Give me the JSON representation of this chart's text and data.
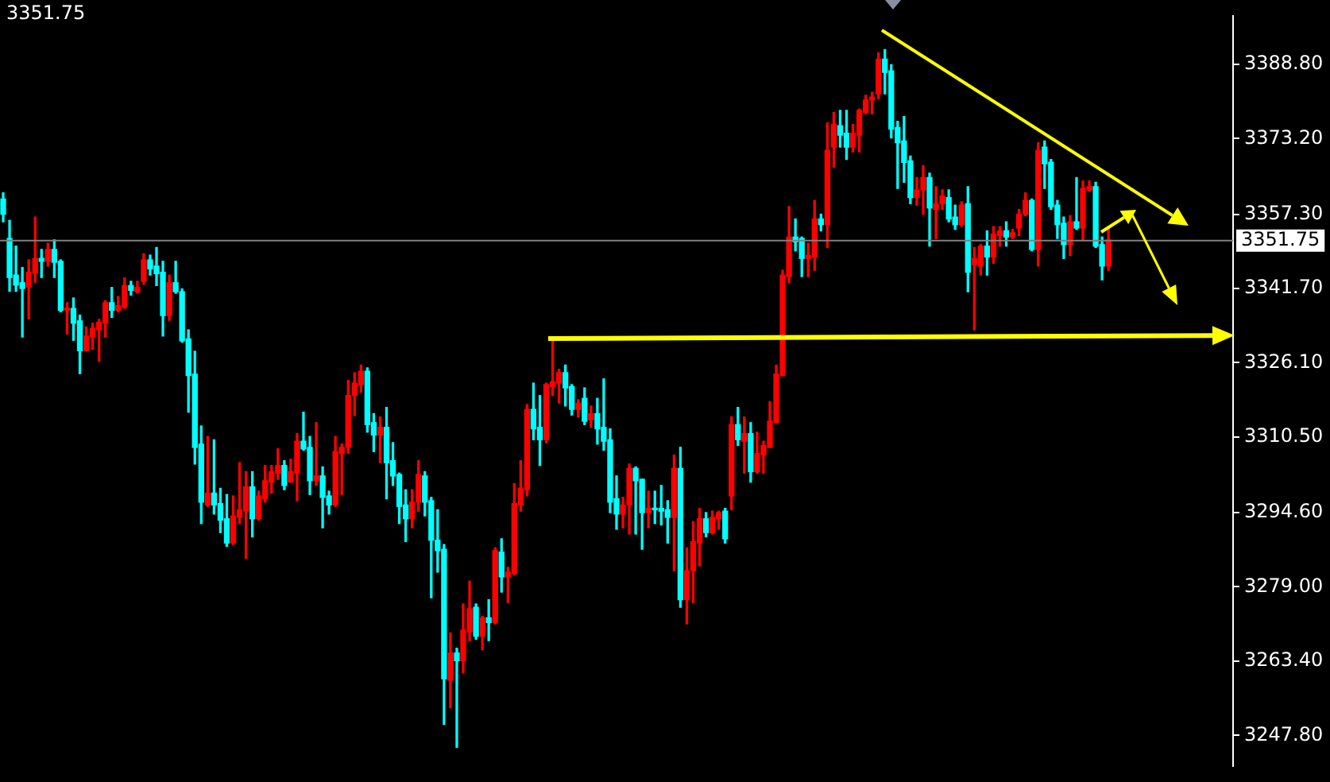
{
  "chart_data": {
    "type": "candlestick",
    "title": "3351.75",
    "categories": [
      null,
      null,
      null,
      null,
      null,
      null,
      null,
      null,
      null,
      null,
      null,
      null,
      null,
      null,
      null,
      null,
      null,
      null,
      null,
      null,
      null,
      null,
      null,
      null,
      null,
      null,
      null,
      null,
      null,
      null,
      null,
      null,
      null,
      null,
      null,
      null,
      null,
      null,
      null,
      null,
      null,
      null,
      null,
      null,
      null,
      null,
      null,
      null,
      null,
      null,
      null,
      null,
      null,
      null,
      null,
      null,
      null,
      null,
      null,
      null,
      null,
      null,
      null,
      null,
      null,
      null,
      null,
      null,
      null,
      null,
      null,
      null,
      null,
      null,
      null,
      null,
      null,
      null,
      null,
      null,
      null,
      null,
      null,
      null,
      null,
      null,
      null,
      null,
      null,
      null,
      null,
      null,
      null,
      null,
      null,
      null,
      null,
      null,
      null,
      null,
      null,
      null,
      null,
      null,
      null,
      null,
      null,
      null,
      null,
      null,
      null,
      null,
      null,
      null,
      null,
      null,
      null,
      null,
      null,
      null,
      null,
      null,
      null,
      null,
      null,
      null,
      null,
      null,
      null,
      null,
      null,
      null,
      null,
      null,
      null,
      null,
      null,
      null,
      null,
      null,
      null,
      null,
      null,
      null,
      null,
      null,
      null,
      null,
      null,
      null,
      null,
      null,
      null,
      null,
      null,
      null,
      null,
      null,
      null,
      null,
      null,
      null,
      null,
      null,
      null,
      null,
      null,
      null,
      null,
      null,
      null,
      null,
      null,
      null,
      null,
      null,
      null,
      null,
      null,
      null,
      null,
      null,
      null,
      null,
      null,
      null,
      null,
      null,
      null,
      null,
      null,
      null,
      null
    ],
    "ohlc": [
      [
        3360.5,
        3361.8,
        3355.7,
        3357.3
      ],
      [
        3352.2,
        3356.0,
        3341.1,
        3344.0
      ],
      [
        3344.5,
        3350.6,
        3341.1,
        3342.4
      ],
      [
        3342.9,
        3346.1,
        3331.5,
        3341.7
      ],
      [
        3342.0,
        3347.7,
        3335.3,
        3345.1
      ],
      [
        3344.9,
        3356.7,
        3343.0,
        3348.0
      ],
      [
        3348.0,
        3349.9,
        3344.0,
        3347.4
      ],
      [
        3347.4,
        3351.2,
        3346.4,
        3349.9
      ],
      [
        3349.9,
        3351.9,
        3344.0,
        3347.2
      ],
      [
        3347.4,
        3347.7,
        3336.8,
        3337.1
      ],
      [
        3337.1,
        3338.7,
        3332.1,
        3337.6
      ],
      [
        3337.5,
        3339.7,
        3330.8,
        3334.4
      ],
      [
        3334.9,
        3336.1,
        3323.8,
        3328.6
      ],
      [
        3328.6,
        3333.6,
        3328.6,
        3331.7
      ],
      [
        3331.5,
        3334.4,
        3328.9,
        3333.3
      ],
      [
        3333.0,
        3335.2,
        3326.4,
        3334.6
      ],
      [
        3334.4,
        3339.1,
        3331.5,
        3338.7
      ],
      [
        3338.7,
        3341.9,
        3335.6,
        3337.1
      ],
      [
        3337.1,
        3340.0,
        3336.8,
        3338.1
      ],
      [
        3337.8,
        3343.9,
        3337.5,
        3342.3
      ],
      [
        3342.3,
        3343.2,
        3340.3,
        3341.3
      ],
      [
        3341.0,
        3343.2,
        3340.7,
        3341.9
      ],
      [
        3343.2,
        3349.0,
        3342.6,
        3347.7
      ],
      [
        3347.7,
        3348.7,
        3344.5,
        3345.8
      ],
      [
        3346.4,
        3350.3,
        3342.3,
        3344.8
      ],
      [
        3345.1,
        3347.4,
        3331.7,
        3336.0
      ],
      [
        3336.0,
        3344.5,
        3335.0,
        3342.9
      ],
      [
        3342.9,
        3347.4,
        3340.7,
        3341.0
      ],
      [
        3341.0,
        3341.6,
        3330.4,
        3330.7
      ],
      [
        3331.1,
        3333.0,
        3315.7,
        3323.4
      ],
      [
        3323.7,
        3328.5,
        3304.8,
        3308.3
      ],
      [
        3309.0,
        3312.8,
        3292.3,
        3296.8
      ],
      [
        3296.2,
        3310.6,
        3295.9,
        3298.7
      ],
      [
        3298.7,
        3309.9,
        3294.3,
        3296.2
      ],
      [
        3296.5,
        3299.7,
        3290.4,
        3293.0
      ],
      [
        3293.3,
        3298.4,
        3287.5,
        3288.2
      ],
      [
        3288.2,
        3298.1,
        3287.9,
        3293.9
      ],
      [
        3293.6,
        3305.1,
        3292.3,
        3295.2
      ],
      [
        3294.9,
        3303.2,
        3285.0,
        3300.0
      ],
      [
        3300.0,
        3303.2,
        3289.5,
        3293.3
      ],
      [
        3293.3,
        3299.1,
        3293.0,
        3298.1
      ],
      [
        3297.5,
        3304.5,
        3296.8,
        3301.3
      ],
      [
        3301.0,
        3304.5,
        3298.7,
        3303.2
      ],
      [
        3302.9,
        3308.0,
        3301.6,
        3304.5
      ],
      [
        3304.5,
        3305.5,
        3299.4,
        3300.3
      ],
      [
        3301.0,
        3305.8,
        3301.0,
        3303.2
      ],
      [
        3302.9,
        3311.2,
        3297.1,
        3309.6
      ],
      [
        3309.6,
        3315.7,
        3307.7,
        3308.0
      ],
      [
        3308.3,
        3310.6,
        3298.4,
        3301.3
      ],
      [
        3301.3,
        3313.5,
        3300.3,
        3302.3
      ],
      [
        3302.3,
        3304.2,
        3291.4,
        3297.8
      ],
      [
        3298.1,
        3299.1,
        3294.3,
        3296.2
      ],
      [
        3296.2,
        3310.6,
        3295.9,
        3307.4
      ],
      [
        3307.0,
        3309.0,
        3298.4,
        3308.3
      ],
      [
        3308.3,
        3322.4,
        3307.1,
        3319.2
      ],
      [
        3319.2,
        3324.0,
        3315.0,
        3321.8
      ],
      [
        3321.5,
        3325.6,
        3319.9,
        3324.3
      ],
      [
        3324.3,
        3325.0,
        3311.5,
        3313.1
      ],
      [
        3313.5,
        3315.4,
        3307.4,
        3310.9
      ],
      [
        3310.9,
        3314.7,
        3305.1,
        3312.5
      ],
      [
        3312.5,
        3316.7,
        3297.5,
        3305.1
      ],
      [
        3305.5,
        3309.3,
        3300.3,
        3302.3
      ],
      [
        3302.6,
        3302.9,
        3292.3,
        3295.9
      ],
      [
        3296.2,
        3299.4,
        3288.5,
        3293.3
      ],
      [
        3293.3,
        3299.4,
        3291.4,
        3296.8
      ],
      [
        3296.8,
        3305.5,
        3294.9,
        3302.6
      ],
      [
        3302.3,
        3303.2,
        3293.9,
        3296.8
      ],
      [
        3297.1,
        3297.8,
        3276.7,
        3288.8
      ],
      [
        3288.8,
        3295.2,
        3282.1,
        3286.6
      ],
      [
        3286.9,
        3287.9,
        3250.1,
        3259.7
      ],
      [
        3259.4,
        3269.3,
        3253.6,
        3265.1
      ],
      [
        3265.1,
        3266.1,
        3245.3,
        3263.5
      ],
      [
        3263.5,
        3275.4,
        3261.0,
        3269.9
      ],
      [
        3269.6,
        3280.2,
        3267.7,
        3274.4
      ],
      [
        3274.7,
        3275.4,
        3268.0,
        3268.6
      ],
      [
        3268.6,
        3272.8,
        3265.8,
        3272.5
      ],
      [
        3272.5,
        3276.3,
        3267.7,
        3271.5
      ],
      [
        3271.5,
        3287.2,
        3271.2,
        3286.6
      ],
      [
        3286.3,
        3289.1,
        3277.9,
        3281.1
      ],
      [
        3281.1,
        3283.1,
        3275.7,
        3282.1
      ],
      [
        3281.8,
        3300.7,
        3281.5,
        3296.5
      ],
      [
        3296.2,
        3305.5,
        3294.9,
        3299.7
      ],
      [
        3299.4,
        3317.3,
        3298.1,
        3316.3
      ],
      [
        3316.3,
        3321.8,
        3309.9,
        3312.2
      ],
      [
        3312.5,
        3319.2,
        3304.5,
        3309.9
      ],
      [
        3309.9,
        3321.8,
        3309.3,
        3321.5
      ],
      [
        3321.1,
        3331.1,
        3319.2,
        3322.1
      ],
      [
        3321.8,
        3324.7,
        3317.6,
        3324.0
      ],
      [
        3324.0,
        3325.6,
        3317.0,
        3320.8
      ],
      [
        3321.1,
        3321.5,
        3315.1,
        3316.3
      ],
      [
        3316.3,
        3318.3,
        3314.7,
        3317.6
      ],
      [
        3318.6,
        3320.8,
        3313.1,
        3313.8
      ],
      [
        3314.1,
        3317.0,
        3312.5,
        3315.4
      ],
      [
        3315.4,
        3318.6,
        3309.0,
        3312.2
      ],
      [
        3312.5,
        3322.7,
        3307.7,
        3309.6
      ],
      [
        3309.9,
        3312.2,
        3294.6,
        3296.8
      ],
      [
        3297.5,
        3302.3,
        3291.1,
        3294.3
      ],
      [
        3294.3,
        3297.8,
        3291.4,
        3296.2
      ],
      [
        3296.2,
        3304.8,
        3290.1,
        3303.9
      ],
      [
        3303.9,
        3304.2,
        3290.1,
        3301.3
      ],
      [
        3301.6,
        3301.6,
        3286.9,
        3294.6
      ],
      [
        3294.6,
        3299.1,
        3291.4,
        3295.5
      ],
      [
        3295.5,
        3299.1,
        3292.3,
        3295.2
      ],
      [
        3295.5,
        3300.3,
        3292.0,
        3294.9
      ],
      [
        3295.2,
        3297.1,
        3288.2,
        3293.6
      ],
      [
        3293.6,
        3306.7,
        3282.4,
        3303.9
      ],
      [
        3303.9,
        3308.3,
        3274.7,
        3276.3
      ],
      [
        3276.3,
        3287.2,
        3271.2,
        3282.4
      ],
      [
        3282.4,
        3292.7,
        3275.7,
        3288.5
      ],
      [
        3288.2,
        3295.5,
        3283.4,
        3293.3
      ],
      [
        3293.3,
        3294.6,
        3289.5,
        3290.4
      ],
      [
        3290.4,
        3294.9,
        3290.1,
        3293.6
      ],
      [
        3293.3,
        3294.9,
        3291.1,
        3294.6
      ],
      [
        3294.9,
        3295.5,
        3288.2,
        3289.1
      ],
      [
        3298.1,
        3314.7,
        3295.2,
        3313.1
      ],
      [
        3313.1,
        3316.7,
        3308.7,
        3309.9
      ],
      [
        3309.6,
        3314.7,
        3302.9,
        3311.2
      ],
      [
        3311.2,
        3313.5,
        3301.0,
        3303.2
      ],
      [
        3303.2,
        3311.5,
        3302.9,
        3307.0
      ],
      [
        3306.7,
        3309.6,
        3302.9,
        3308.7
      ],
      [
        3308.3,
        3317.9,
        3308.3,
        3313.8
      ],
      [
        3313.5,
        3325.6,
        3313.5,
        3323.7
      ],
      [
        3323.4,
        3345.5,
        3323.4,
        3344.5
      ],
      [
        3344.2,
        3358.9,
        3342.9,
        3352.5
      ],
      [
        3352.5,
        3356.3,
        3349.6,
        3351.5
      ],
      [
        3352.2,
        3352.5,
        3344.2,
        3348.0
      ],
      [
        3348.0,
        3351.2,
        3344.2,
        3348.6
      ],
      [
        3348.3,
        3360.2,
        3345.5,
        3356.3
      ],
      [
        3356.3,
        3357.3,
        3353.8,
        3355.1
      ],
      [
        3355.1,
        3376.5,
        3350.3,
        3370.7
      ],
      [
        3371.4,
        3378.7,
        3367.2,
        3376.2
      ],
      [
        3375.9,
        3379.1,
        3371.4,
        3373.9
      ],
      [
        3374.3,
        3379.1,
        3368.8,
        3371.4
      ],
      [
        3371.4,
        3376.2,
        3370.4,
        3374.3
      ],
      [
        3373.9,
        3379.4,
        3370.4,
        3379.1
      ],
      [
        3378.7,
        3382.3,
        3378.4,
        3381.3
      ],
      [
        3381.3,
        3382.9,
        3378.4,
        3381.9
      ],
      [
        3382.6,
        3391.2,
        3381.6,
        3389.9
      ],
      [
        3389.9,
        3391.9,
        3382.6,
        3387.1
      ],
      [
        3387.4,
        3388.7,
        3373.3,
        3375.2
      ],
      [
        3375.5,
        3376.8,
        3362.7,
        3372.3
      ],
      [
        3372.7,
        3377.8,
        3364.0,
        3368.2
      ],
      [
        3368.5,
        3369.5,
        3359.5,
        3360.8
      ],
      [
        3360.8,
        3365.0,
        3359.2,
        3362.4
      ],
      [
        3362.4,
        3367.5,
        3357.3,
        3365.0
      ],
      [
        3365.0,
        3365.9,
        3350.6,
        3358.6
      ],
      [
        3358.3,
        3363.1,
        3352.2,
        3359.5
      ],
      [
        3359.5,
        3362.4,
        3358.3,
        3361.1
      ],
      [
        3360.8,
        3362.4,
        3355.7,
        3356.3
      ],
      [
        3356.7,
        3359.2,
        3354.1,
        3355.1
      ],
      [
        3355.1,
        3359.9,
        3354.7,
        3359.2
      ],
      [
        3359.5,
        3363.1,
        3341.0,
        3345.1
      ],
      [
        3346.7,
        3350.3,
        3333.0,
        3348.0
      ],
      [
        3346.4,
        3350.9,
        3344.5,
        3350.6
      ],
      [
        3350.6,
        3353.8,
        3344.5,
        3348.3
      ],
      [
        3348.3,
        3354.7,
        3347.0,
        3353.1
      ],
      [
        3352.8,
        3354.7,
        3350.6,
        3353.8
      ],
      [
        3353.8,
        3355.7,
        3350.6,
        3352.5
      ],
      [
        3352.5,
        3354.1,
        3352.2,
        3353.4
      ],
      [
        3354.4,
        3358.3,
        3352.8,
        3357.3
      ],
      [
        3357.3,
        3361.8,
        3357.0,
        3360.2
      ],
      [
        3360.2,
        3360.5,
        3349.6,
        3349.9
      ],
      [
        3349.9,
        3372.3,
        3346.4,
        3370.7
      ],
      [
        3371.4,
        3372.7,
        3362.7,
        3367.9
      ],
      [
        3368.2,
        3368.8,
        3358.3,
        3358.9
      ],
      [
        3359.2,
        3360.2,
        3352.2,
        3355.1
      ],
      [
        3355.4,
        3356.7,
        3348.0,
        3350.9
      ],
      [
        3350.9,
        3357.0,
        3348.6,
        3355.7
      ],
      [
        3355.7,
        3365.0,
        3354.1,
        3354.4
      ],
      [
        3354.4,
        3364.3,
        3351.9,
        3362.7
      ],
      [
        3362.4,
        3364.3,
        3362.1,
        3363.1
      ],
      [
        3363.1,
        3364.0,
        3350.3,
        3350.6
      ],
      [
        3350.9,
        3352.5,
        3343.5,
        3346.4
      ],
      [
        3346.4,
        3354.7,
        3345.5,
        3351.9
      ],
      null,
      null,
      null,
      null,
      null,
      null,
      null,
      null,
      null,
      null,
      null,
      null,
      null,
      null,
      null,
      null,
      null,
      null,
      null
    ],
    "colors": [
      "#00ffff",
      "#00ffff",
      "#00ffff",
      "#00ffff",
      "#ff0000",
      "#ff0000",
      "#00ffff",
      "#ff0000",
      "#00ffff",
      "#00ffff",
      "#ff0000",
      "#00ffff",
      "#00ffff",
      "#ff0000",
      "#ff0000",
      "#ff0000",
      "#ff0000",
      "#00ffff",
      "#ff0000",
      "#ff0000",
      "#00ffff",
      "#ff0000",
      "#ff0000",
      "#00ffff",
      "#00ffff",
      "#00ffff",
      "#ff0000",
      "#00ffff",
      "#00ffff",
      "#00ffff",
      "#00ffff",
      "#00ffff",
      "#ff0000",
      "#00ffff",
      "#00ffff",
      "#00ffff",
      "#ff0000",
      "#ff0000",
      "#ff0000",
      "#00ffff",
      "#ff0000",
      "#ff0000",
      "#ff0000",
      "#ff0000",
      "#00ffff",
      "#ff0000",
      "#ff0000",
      "#00ffff",
      "#00ffff",
      "#ff0000",
      "#00ffff",
      "#00ffff",
      "#ff0000",
      "#ff0000",
      "#ff0000",
      "#ff0000",
      "#ff0000",
      "#00ffff",
      "#00ffff",
      "#ff0000",
      "#00ffff",
      "#00ffff",
      "#00ffff",
      "#00ffff",
      "#ff0000",
      "#ff0000",
      "#00ffff",
      "#00ffff",
      "#00ffff",
      "#00ffff",
      "#ff0000",
      "#00ffff",
      "#ff0000",
      "#ff0000",
      "#00ffff",
      "#ff0000",
      "#00ffff",
      "#ff0000",
      "#00ffff",
      "#ff0000",
      "#ff0000",
      "#ff0000",
      "#ff0000",
      "#00ffff",
      "#00ffff",
      "#ff0000",
      "#ff0000",
      "#ff0000",
      "#00ffff",
      "#00ffff",
      "#ff0000",
      "#00ffff",
      "#ff0000",
      "#00ffff",
      "#00ffff",
      "#00ffff",
      "#00ffff",
      "#ff0000",
      "#ff0000",
      "#00ffff",
      "#00ffff",
      "#ff0000",
      "#00ffff",
      "#00ffff",
      "#00ffff",
      "#ff0000",
      "#00ffff",
      "#ff0000",
      "#ff0000",
      "#ff0000",
      "#00ffff",
      "#ff0000",
      "#ff0000",
      "#00ffff",
      "#ff0000",
      "#00ffff",
      "#ff0000",
      "#00ffff",
      "#ff0000",
      "#ff0000",
      "#ff0000",
      "#ff0000",
      "#ff0000",
      "#ff0000",
      "#00ffff",
      "#00ffff",
      "#ff0000",
      "#ff0000",
      "#00ffff",
      "#ff0000",
      "#ff0000",
      "#00ffff",
      "#00ffff",
      "#ff0000",
      "#ff0000",
      "#ff0000",
      "#ff0000",
      "#ff0000",
      "#00ffff",
      "#00ffff",
      "#00ffff",
      "#00ffff",
      "#00ffff",
      "#ff0000",
      "#ff0000",
      "#00ffff",
      "#ff0000",
      "#ff0000",
      "#00ffff",
      "#00ffff",
      "#ff0000",
      "#00ffff",
      "#ff0000",
      "#ff0000",
      "#00ffff",
      "#ff0000",
      "#ff0000",
      "#00ffff",
      "#ff0000",
      "#ff0000",
      "#ff0000",
      "#00ffff",
      "#ff0000",
      "#00ffff",
      "#00ffff",
      "#00ffff",
      "#00ffff",
      "#ff0000",
      "#00ffff",
      "#ff0000",
      "#ff0000",
      "#00ffff",
      "#00ffff",
      "#ff0000",
      null,
      null,
      null,
      null,
      null,
      null,
      null,
      null,
      null,
      null,
      null,
      null,
      null,
      null,
      null,
      null,
      null,
      null,
      null
    ],
    "ylim": [
      3241.4,
      3398.9
    ],
    "yticks": [
      {
        "value": 3247.8,
        "label": "3247.80"
      },
      {
        "value": 3263.4,
        "label": "3263.40"
      },
      {
        "value": 3279,
        "label": "3279.00"
      },
      {
        "value": 3294.6,
        "label": "3294.60"
      },
      {
        "value": 3310.5,
        "label": "3310.50"
      },
      {
        "value": 3326.1,
        "label": "3326.10"
      },
      {
        "value": 3341.7,
        "label": "3341.70"
      },
      {
        "value": 3357.3,
        "label": "3357.30"
      },
      {
        "value": 3373.2,
        "label": "3373.20"
      },
      {
        "value": 3388.8,
        "label": "3388.80"
      }
    ],
    "ref_lines": [
      {
        "axis": "y",
        "value": 3351.75,
        "label": "3351.75",
        "color": "#808080"
      }
    ],
    "tick_labels": "y"
  }
}
